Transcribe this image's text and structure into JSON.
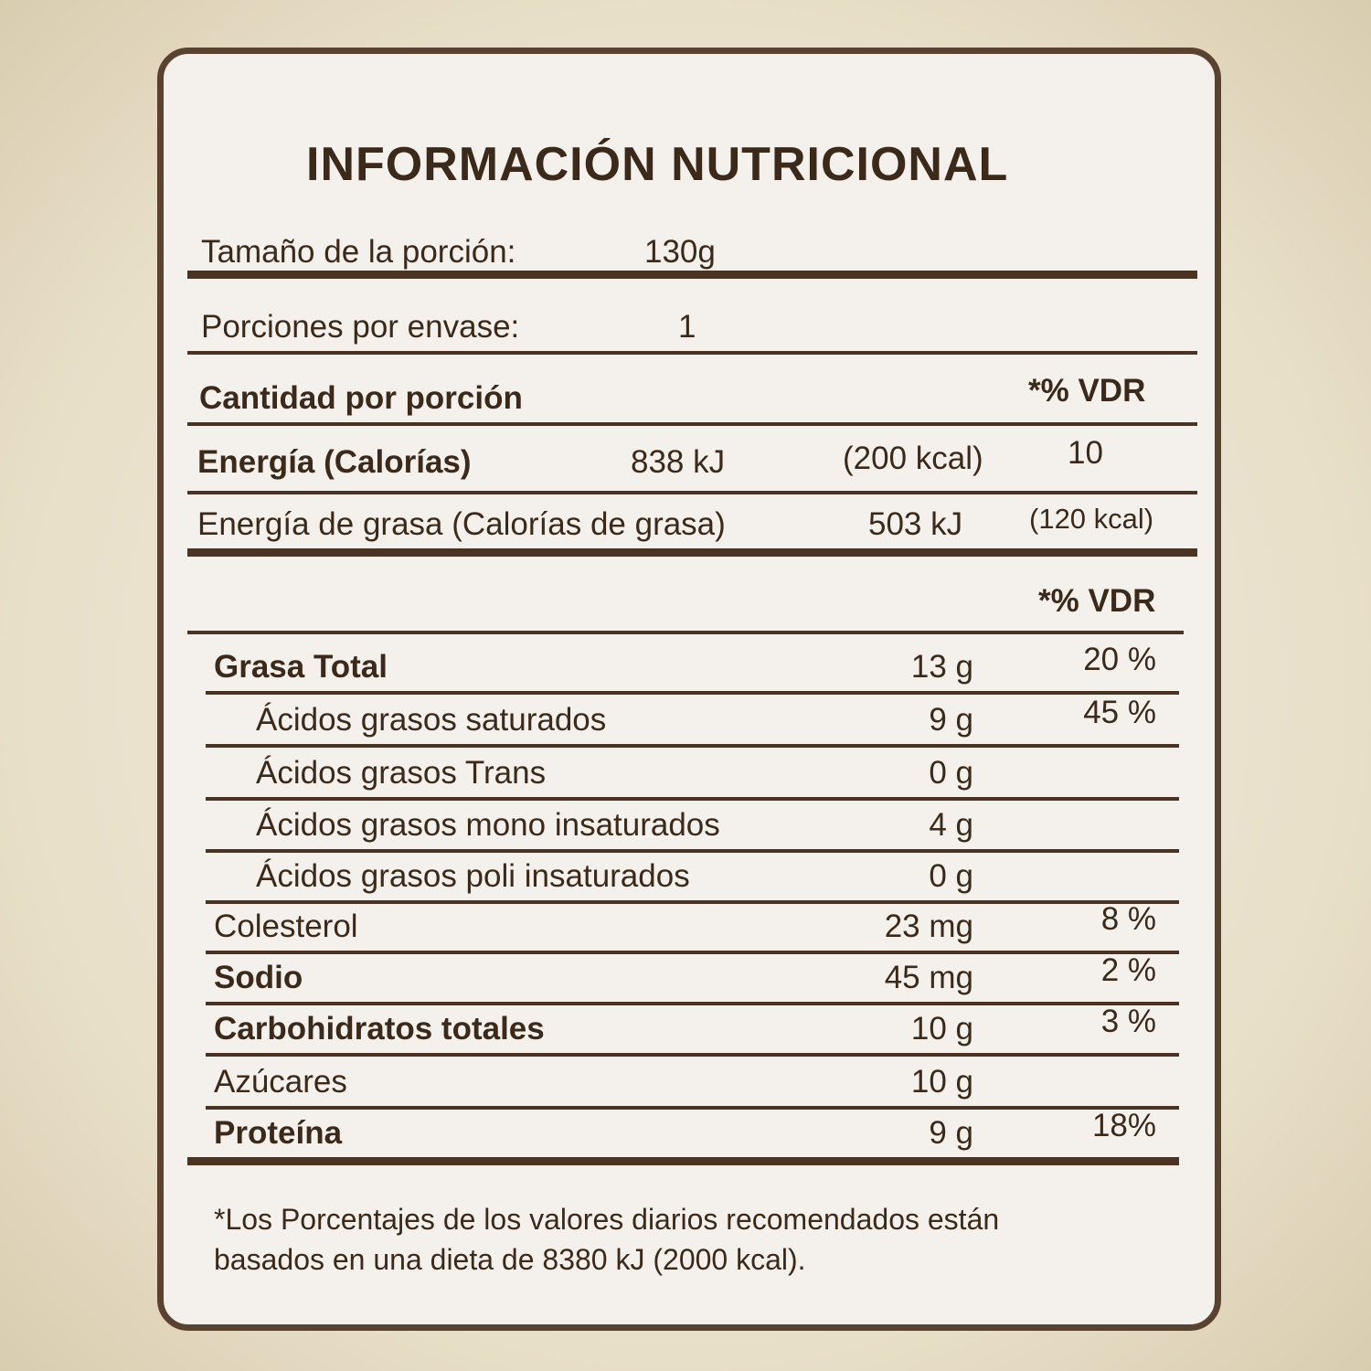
{
  "title": "INFORMACIÓN NUTRICIONAL",
  "serving_size": {
    "label": "Tamaño de la porción:",
    "value": "130g"
  },
  "servings": {
    "label": "Porciones por envase:",
    "value": "1"
  },
  "amount_header": {
    "label": "Cantidad por porción",
    "vdr": "*% VDR"
  },
  "energy": {
    "label": "Energía (Calorías)",
    "kj": "838 kJ",
    "kcal": "(200 kcal)",
    "vdr": "10"
  },
  "fat_energy": {
    "label": "Energía de grasa (Calorías de grasa)",
    "kj": "503 kJ",
    "kcal": "(120 kcal)"
  },
  "vdr_header": "*% VDR",
  "nutrients": [
    {
      "label": "Grasa Total",
      "amount": "13 g",
      "vdr": "20 %",
      "bold": true,
      "indent": false
    },
    {
      "label": "Ácidos grasos saturados",
      "amount": "9 g",
      "vdr": "45 %",
      "bold": false,
      "indent": true
    },
    {
      "label": "Ácidos grasos Trans",
      "amount": "0 g",
      "vdr": "",
      "bold": false,
      "indent": true
    },
    {
      "label": "Ácidos grasos mono insaturados",
      "amount": "4 g",
      "vdr": "",
      "bold": false,
      "indent": true
    },
    {
      "label": "Ácidos grasos poli insaturados",
      "amount": "0 g",
      "vdr": "",
      "bold": false,
      "indent": true
    },
    {
      "label": "Colesterol",
      "amount": "23 mg",
      "vdr": "8 %",
      "bold": false,
      "indent": false
    },
    {
      "label": "Sodio",
      "amount": "45 mg",
      "vdr": "2 %",
      "bold": true,
      "indent": false
    },
    {
      "label": "Carbohidratos totales",
      "amount": "10 g",
      "vdr": "3 %",
      "bold": true,
      "indent": false
    },
    {
      "label": "Azúcares",
      "amount": "10 g",
      "vdr": "",
      "bold": false,
      "indent": false
    },
    {
      "label": "Proteína",
      "amount": "9 g",
      "vdr": "18%",
      "bold": true,
      "indent": false
    }
  ],
  "footnote": [
    "*Los Porcentajes de los valores diarios recomendados están",
    "basados en una dieta de 8380 kJ (2000 kcal)."
  ]
}
